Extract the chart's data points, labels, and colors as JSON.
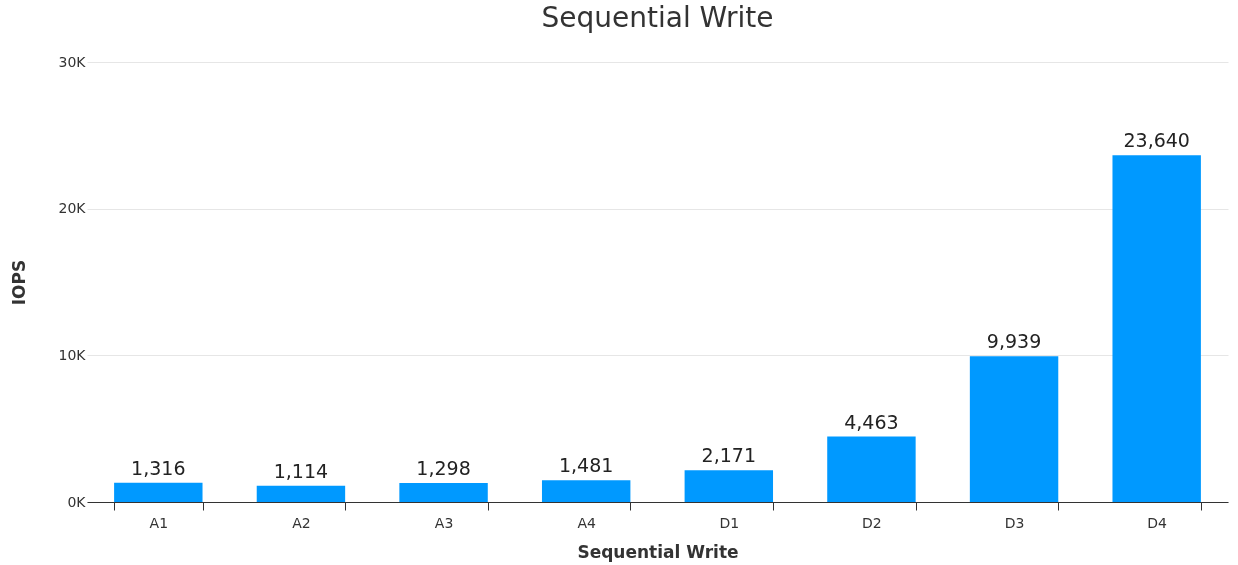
{
  "chart_data": {
    "type": "bar",
    "title": "Sequential Write",
    "xlabel": "Sequential Write",
    "ylabel": "IOPS",
    "categories": [
      "A1",
      "A2",
      "A3",
      "A4",
      "D1",
      "D2",
      "D3",
      "D4"
    ],
    "series": [
      {
        "color": "#0099ff",
        "values": [
          1316,
          1114,
          1298,
          1481,
          2171,
          4463,
          9939,
          23640
        ]
      }
    ],
    "ylim": [
      0,
      30000
    ],
    "yticks": [
      {
        "value": 0,
        "label": "0K"
      },
      {
        "value": 10000,
        "label": "10K"
      },
      {
        "value": 20000,
        "label": "20K"
      },
      {
        "value": 30000,
        "label": "30K"
      }
    ],
    "value_labels": [
      "1,316",
      "1,114",
      "1,298",
      "1,481",
      "2,171",
      "4,463",
      "9,939",
      "23,640"
    ],
    "grid": "y",
    "legend": false
  }
}
